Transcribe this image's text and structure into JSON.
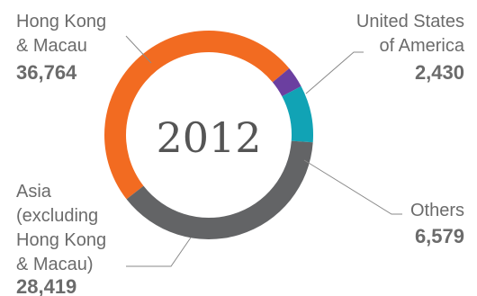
{
  "chart_data": {
    "type": "pie",
    "variant": "donut",
    "center_label": "2012",
    "slices": [
      {
        "label_lines": [
          "Hong Kong",
          "& Macau"
        ],
        "value_text": "36,764",
        "value": 36764,
        "color": "#F26B21"
      },
      {
        "label_lines": [
          "United States",
          "of America"
        ],
        "value_text": "2,430",
        "value": 2430,
        "color": "#6B3FA0"
      },
      {
        "label_lines": [
          "Others"
        ],
        "value_text": "6,579",
        "value": 6579,
        "color": "#11A3B5"
      },
      {
        "label_lines": [
          "Asia",
          "(excluding",
          "Hong Kong",
          "& Macau)"
        ],
        "value_text": "28,419",
        "value": 28419,
        "color": "#636466"
      }
    ]
  }
}
